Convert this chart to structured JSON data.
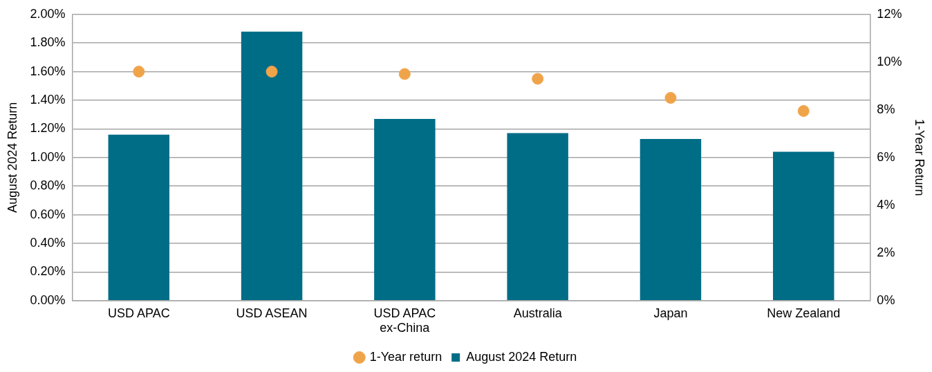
{
  "chart_data": {
    "type": "bar",
    "ylabel": "August 2024 Return",
    "y2label": "1-Year Return",
    "categories": [
      "USD APAC",
      "USD ASEAN",
      "USD APAC ex-China",
      "Australia",
      "Japan",
      "New Zealand"
    ],
    "series": [
      {
        "name": "August 2024 Return",
        "color": "#006d87",
        "values": [
          1.16,
          1.88,
          1.27,
          1.17,
          1.13,
          1.04
        ]
      },
      {
        "name": "1-Year return",
        "type": "scatter",
        "axis": "y2",
        "color": "#f0a44a",
        "values": [
          9.6,
          9.6,
          9.5,
          9.3,
          8.5,
          7.95
        ]
      }
    ],
    "ylim": [
      0,
      2
    ],
    "yticks": [
      {
        "value": 0,
        "label": "0.00%"
      },
      {
        "value": 0.2,
        "label": "0.20%"
      },
      {
        "value": 0.4,
        "label": "0.40%"
      },
      {
        "value": 0.6,
        "label": "0.60%"
      },
      {
        "value": 0.8,
        "label": "0.80%"
      },
      {
        "value": 1,
        "label": "1.00%"
      },
      {
        "value": 1.2,
        "label": "1.20%"
      },
      {
        "value": 1.4,
        "label": "1.40%"
      },
      {
        "value": 1.6,
        "label": "1.60%"
      },
      {
        "value": 1.8,
        "label": "1.80%"
      },
      {
        "value": 2,
        "label": "2.00%"
      }
    ],
    "y2lim": [
      0,
      12
    ],
    "y2ticks": [
      {
        "value": 0,
        "label": "0%"
      },
      {
        "value": 2,
        "label": "2%"
      },
      {
        "value": 4,
        "label": "4%"
      },
      {
        "value": 6,
        "label": "6%"
      },
      {
        "value": 8,
        "label": "8%"
      },
      {
        "value": 10,
        "label": "10%"
      },
      {
        "value": 12,
        "label": "12%"
      }
    ],
    "grid": "y",
    "legend": "bottom",
    "marker": "circle"
  }
}
